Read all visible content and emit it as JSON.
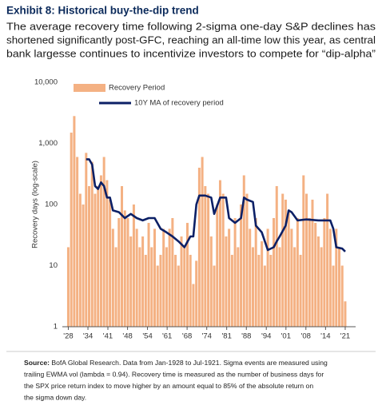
{
  "chart_data": {
    "type": "bar",
    "title": "Exhibit 8: Historical buy-the-dip trend",
    "subtitle": [
      "The average recovery time following 2-sigma one-day S&P declines has",
      "shortened significantly post-GFC, reaching an all-time low this year, as central",
      "bank largesse continues to incentivize investors to compete for “dip-alpha”"
    ],
    "y_label": "Recovery days (log-scale)",
    "log_scale": true,
    "grid": false,
    "legend": "upper left",
    "xlim": [
      1926,
      2024.5
    ],
    "xticks": [
      {
        "value": 1928,
        "label": "'28"
      },
      {
        "value": 1934.6,
        "label": "'34"
      },
      {
        "value": 1941.3,
        "label": "'41"
      },
      {
        "value": 1947.9,
        "label": "'48"
      },
      {
        "value": 1954.6,
        "label": "'54"
      },
      {
        "value": 1961.2,
        "label": "'61"
      },
      {
        "value": 1967.9,
        "label": "'68"
      },
      {
        "value": 1974.5,
        "label": "'74"
      },
      {
        "value": 1981.2,
        "label": "'81"
      },
      {
        "value": 1987.8,
        "label": "'88"
      },
      {
        "value": 1994.5,
        "label": "'94"
      },
      {
        "value": 2001.1,
        "label": "'01"
      },
      {
        "value": 2007.8,
        "label": "'08"
      },
      {
        "value": 2014.4,
        "label": "'14"
      },
      {
        "value": 2021,
        "label": "'21"
      }
    ],
    "ylim": [
      1,
      10000
    ],
    "yticks": [
      1,
      10,
      100,
      {
        "value": 1000,
        "label": "1,000"
      },
      {
        "value": 10000,
        "label": "10,000"
      }
    ],
    "series": [
      {
        "name": "Recovery Period",
        "type": "bar",
        "color": "#f4b183",
        "x": [
          1928,
          1929,
          1930,
          1931,
          1932,
          1933,
          1934,
          1935,
          1936,
          1937,
          1938,
          1939,
          1940,
          1941,
          1942,
          1943,
          1944,
          1945,
          1946,
          1947,
          1948,
          1949,
          1950,
          1951,
          1952,
          1953,
          1954,
          1955,
          1956,
          1957,
          1958,
          1959,
          1960,
          1961,
          1962,
          1963,
          1964,
          1965,
          1966,
          1967,
          1968,
          1969,
          1970,
          1971,
          1972,
          1973,
          1974,
          1975,
          1976,
          1977,
          1978,
          1979,
          1980,
          1981,
          1982,
          1983,
          1984,
          1985,
          1986,
          1987,
          1988,
          1989,
          1990,
          1991,
          1992,
          1993,
          1994,
          1995,
          1996,
          1997,
          1998,
          1999,
          2000,
          2001,
          2002,
          2003,
          2004,
          2005,
          2006,
          2007,
          2008,
          2009,
          2010,
          2011,
          2012,
          2013,
          2014,
          2015,
          2016,
          2017,
          2018,
          2019,
          2020,
          2021
        ],
        "values": [
          20,
          1500,
          2800,
          600,
          150,
          100,
          700,
          200,
          500,
          150,
          200,
          300,
          600,
          250,
          120,
          40,
          20,
          60,
          200,
          80,
          60,
          30,
          100,
          40,
          20,
          30,
          15,
          50,
          20,
          40,
          10,
          15,
          40,
          20,
          40,
          60,
          15,
          10,
          30,
          20,
          50,
          15,
          5,
          12,
          400,
          600,
          200,
          150,
          30,
          10,
          100,
          250,
          150,
          30,
          40,
          15,
          60,
          20,
          100,
          300,
          150,
          40,
          20,
          60,
          15,
          25,
          10,
          40,
          15,
          60,
          200,
          20,
          150,
          120,
          80,
          40,
          20,
          60,
          15,
          300,
          150,
          60,
          120,
          50,
          30,
          20,
          60,
          150,
          40,
          10,
          40,
          20,
          10,
          2.6
        ]
      },
      {
        "name": "10Y MA of recovery period",
        "type": "line",
        "color": "#0c2066",
        "x": [
          1934,
          1935,
          1936,
          1937,
          1938,
          1939,
          1940,
          1941,
          1942,
          1943,
          1945,
          1947,
          1949,
          1951,
          1953,
          1955,
          1957,
          1959,
          1961,
          1963,
          1965,
          1967,
          1969,
          1970,
          1971,
          1972,
          1974,
          1976,
          1977,
          1979,
          1981,
          1982,
          1984,
          1986,
          1987,
          1988,
          1990,
          1991,
          1993,
          1995,
          1997,
          1998,
          1999,
          2001,
          2002,
          2003,
          2005,
          2008,
          2012,
          2016,
          2017,
          2018,
          2020,
          2021
        ],
        "values": [
          550,
          550,
          450,
          200,
          180,
          230,
          200,
          130,
          130,
          80,
          75,
          60,
          70,
          60,
          55,
          60,
          60,
          40,
          35,
          30,
          25,
          20,
          30,
          30,
          100,
          140,
          140,
          130,
          70,
          130,
          130,
          60,
          50,
          60,
          130,
          120,
          110,
          45,
          35,
          18,
          20,
          25,
          30,
          45,
          80,
          75,
          55,
          57,
          55,
          55,
          40,
          20,
          19,
          17
        ]
      }
    ],
    "source": {
      "label": "Source:",
      "lines": [
        " BofA Global Research. Data from Jan-1928 to Jul-1921. Sigma events are measured using",
        "trailing EWMA vol (lambda = 0.94). Recovery time is measured as the number of business days for",
        "the SPX price return index to move higher by an amount equal to 85% of the absolute return on",
        "the sigma down day."
      ]
    }
  }
}
